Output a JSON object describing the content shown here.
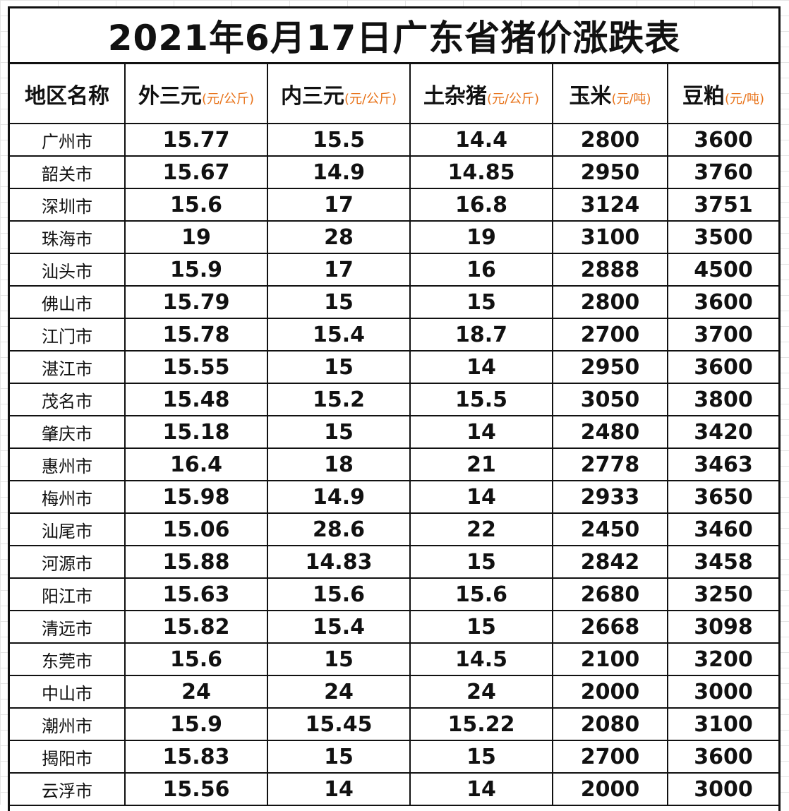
{
  "title": "2021年6月17日广东省猪价涨跌表",
  "colors": {
    "up": "#e02020",
    "down": "#1aa9a0",
    "flat": "#111111",
    "unit": "#e8731a"
  },
  "headers": [
    {
      "name": "地区名称",
      "unit": ""
    },
    {
      "name": "外三元",
      "unit": "(元/公斤)"
    },
    {
      "name": "内三元",
      "unit": "(元/公斤)"
    },
    {
      "name": "土杂猪",
      "unit": "(元/公斤)"
    },
    {
      "name": "玉米",
      "unit": "(元/吨)"
    },
    {
      "name": "豆粕",
      "unit": "(元/吨)"
    }
  ],
  "rows": [
    {
      "city": "广州市",
      "vals": [
        "15.77",
        "15.5",
        "14.4",
        "2800",
        "3600"
      ],
      "colors": [
        "black",
        "red",
        "black",
        "black",
        "black"
      ]
    },
    {
      "city": "韶关市",
      "vals": [
        "15.67",
        "14.9",
        "14.85",
        "2950",
        "3760"
      ],
      "colors": [
        "teal",
        "red",
        "red",
        "black",
        "black"
      ]
    },
    {
      "city": "深圳市",
      "vals": [
        "15.6",
        "17",
        "16.8",
        "3124",
        "3751"
      ],
      "colors": [
        "black",
        "black",
        "black",
        "black",
        "black"
      ]
    },
    {
      "city": "珠海市",
      "vals": [
        "19",
        "28",
        "19",
        "3100",
        "3500"
      ],
      "colors": [
        "black",
        "black",
        "black",
        "black",
        "black"
      ]
    },
    {
      "city": "汕头市",
      "vals": [
        "15.9",
        "17",
        "16",
        "2888",
        "4500"
      ],
      "colors": [
        "black",
        "black",
        "black",
        "black",
        "black"
      ]
    },
    {
      "city": "佛山市",
      "vals": [
        "15.79",
        "15",
        "15",
        "2800",
        "3600"
      ],
      "colors": [
        "teal",
        "black",
        "black",
        "black",
        "black"
      ]
    },
    {
      "city": "江门市",
      "vals": [
        "15.78",
        "15.4",
        "18.7",
        "2700",
        "3700"
      ],
      "colors": [
        "red",
        "black",
        "black",
        "black",
        "black"
      ]
    },
    {
      "city": "湛江市",
      "vals": [
        "15.55",
        "15",
        "14",
        "2950",
        "3600"
      ],
      "colors": [
        "teal",
        "black",
        "black",
        "black",
        "black"
      ]
    },
    {
      "city": "茂名市",
      "vals": [
        "15.48",
        "15.2",
        "15.5",
        "3050",
        "3800"
      ],
      "colors": [
        "teal",
        "teal",
        "black",
        "black",
        "black"
      ]
    },
    {
      "city": "肇庆市",
      "vals": [
        "15.18",
        "15",
        "14",
        "2480",
        "3420"
      ],
      "colors": [
        "teal",
        "black",
        "black",
        "black",
        "black"
      ]
    },
    {
      "city": "惠州市",
      "vals": [
        "16.4",
        "18",
        "21",
        "2778",
        "3463"
      ],
      "colors": [
        "teal",
        "black",
        "black",
        "black",
        "black"
      ]
    },
    {
      "city": "梅州市",
      "vals": [
        "15.98",
        "14.9",
        "14",
        "2933",
        "3650"
      ],
      "colors": [
        "teal",
        "red",
        "teal",
        "teal",
        "black"
      ]
    },
    {
      "city": "汕尾市",
      "vals": [
        "15.06",
        "28.6",
        "22",
        "2450",
        "3460"
      ],
      "colors": [
        "teal",
        "black",
        "black",
        "black",
        "black"
      ]
    },
    {
      "city": "河源市",
      "vals": [
        "15.88",
        "14.83",
        "15",
        "2842",
        "3458"
      ],
      "colors": [
        "teal",
        "teal",
        "teal",
        "red",
        "teal"
      ]
    },
    {
      "city": "阳江市",
      "vals": [
        "15.63",
        "15.6",
        "15.6",
        "2680",
        "3250"
      ],
      "colors": [
        "teal",
        "red",
        "red",
        "black",
        "black"
      ]
    },
    {
      "city": "清远市",
      "vals": [
        "15.82",
        "15.4",
        "15",
        "2668",
        "3098"
      ],
      "colors": [
        "black",
        "black",
        "black",
        "black",
        "black"
      ]
    },
    {
      "city": "东莞市",
      "vals": [
        "15.6",
        "15",
        "14.5",
        "2100",
        "3200"
      ],
      "colors": [
        "black",
        "black",
        "black",
        "black",
        "black"
      ]
    },
    {
      "city": "中山市",
      "vals": [
        "24",
        "24",
        "24",
        "2000",
        "3000"
      ],
      "colors": [
        "black",
        "black",
        "black",
        "black",
        "black"
      ]
    },
    {
      "city": "潮州市",
      "vals": [
        "15.9",
        "15.45",
        "15.22",
        "2080",
        "3100"
      ],
      "colors": [
        "black",
        "black",
        "black",
        "black",
        "black"
      ]
    },
    {
      "city": "揭阳市",
      "vals": [
        "15.83",
        "15",
        "15",
        "2700",
        "3600"
      ],
      "colors": [
        "teal",
        "teal",
        "teal",
        "teal",
        "red"
      ]
    },
    {
      "city": "云浮市",
      "vals": [
        "15.56",
        "14",
        "14",
        "2000",
        "3000"
      ],
      "colors": [
        "teal",
        "black",
        "black",
        "black",
        "black"
      ]
    }
  ]
}
